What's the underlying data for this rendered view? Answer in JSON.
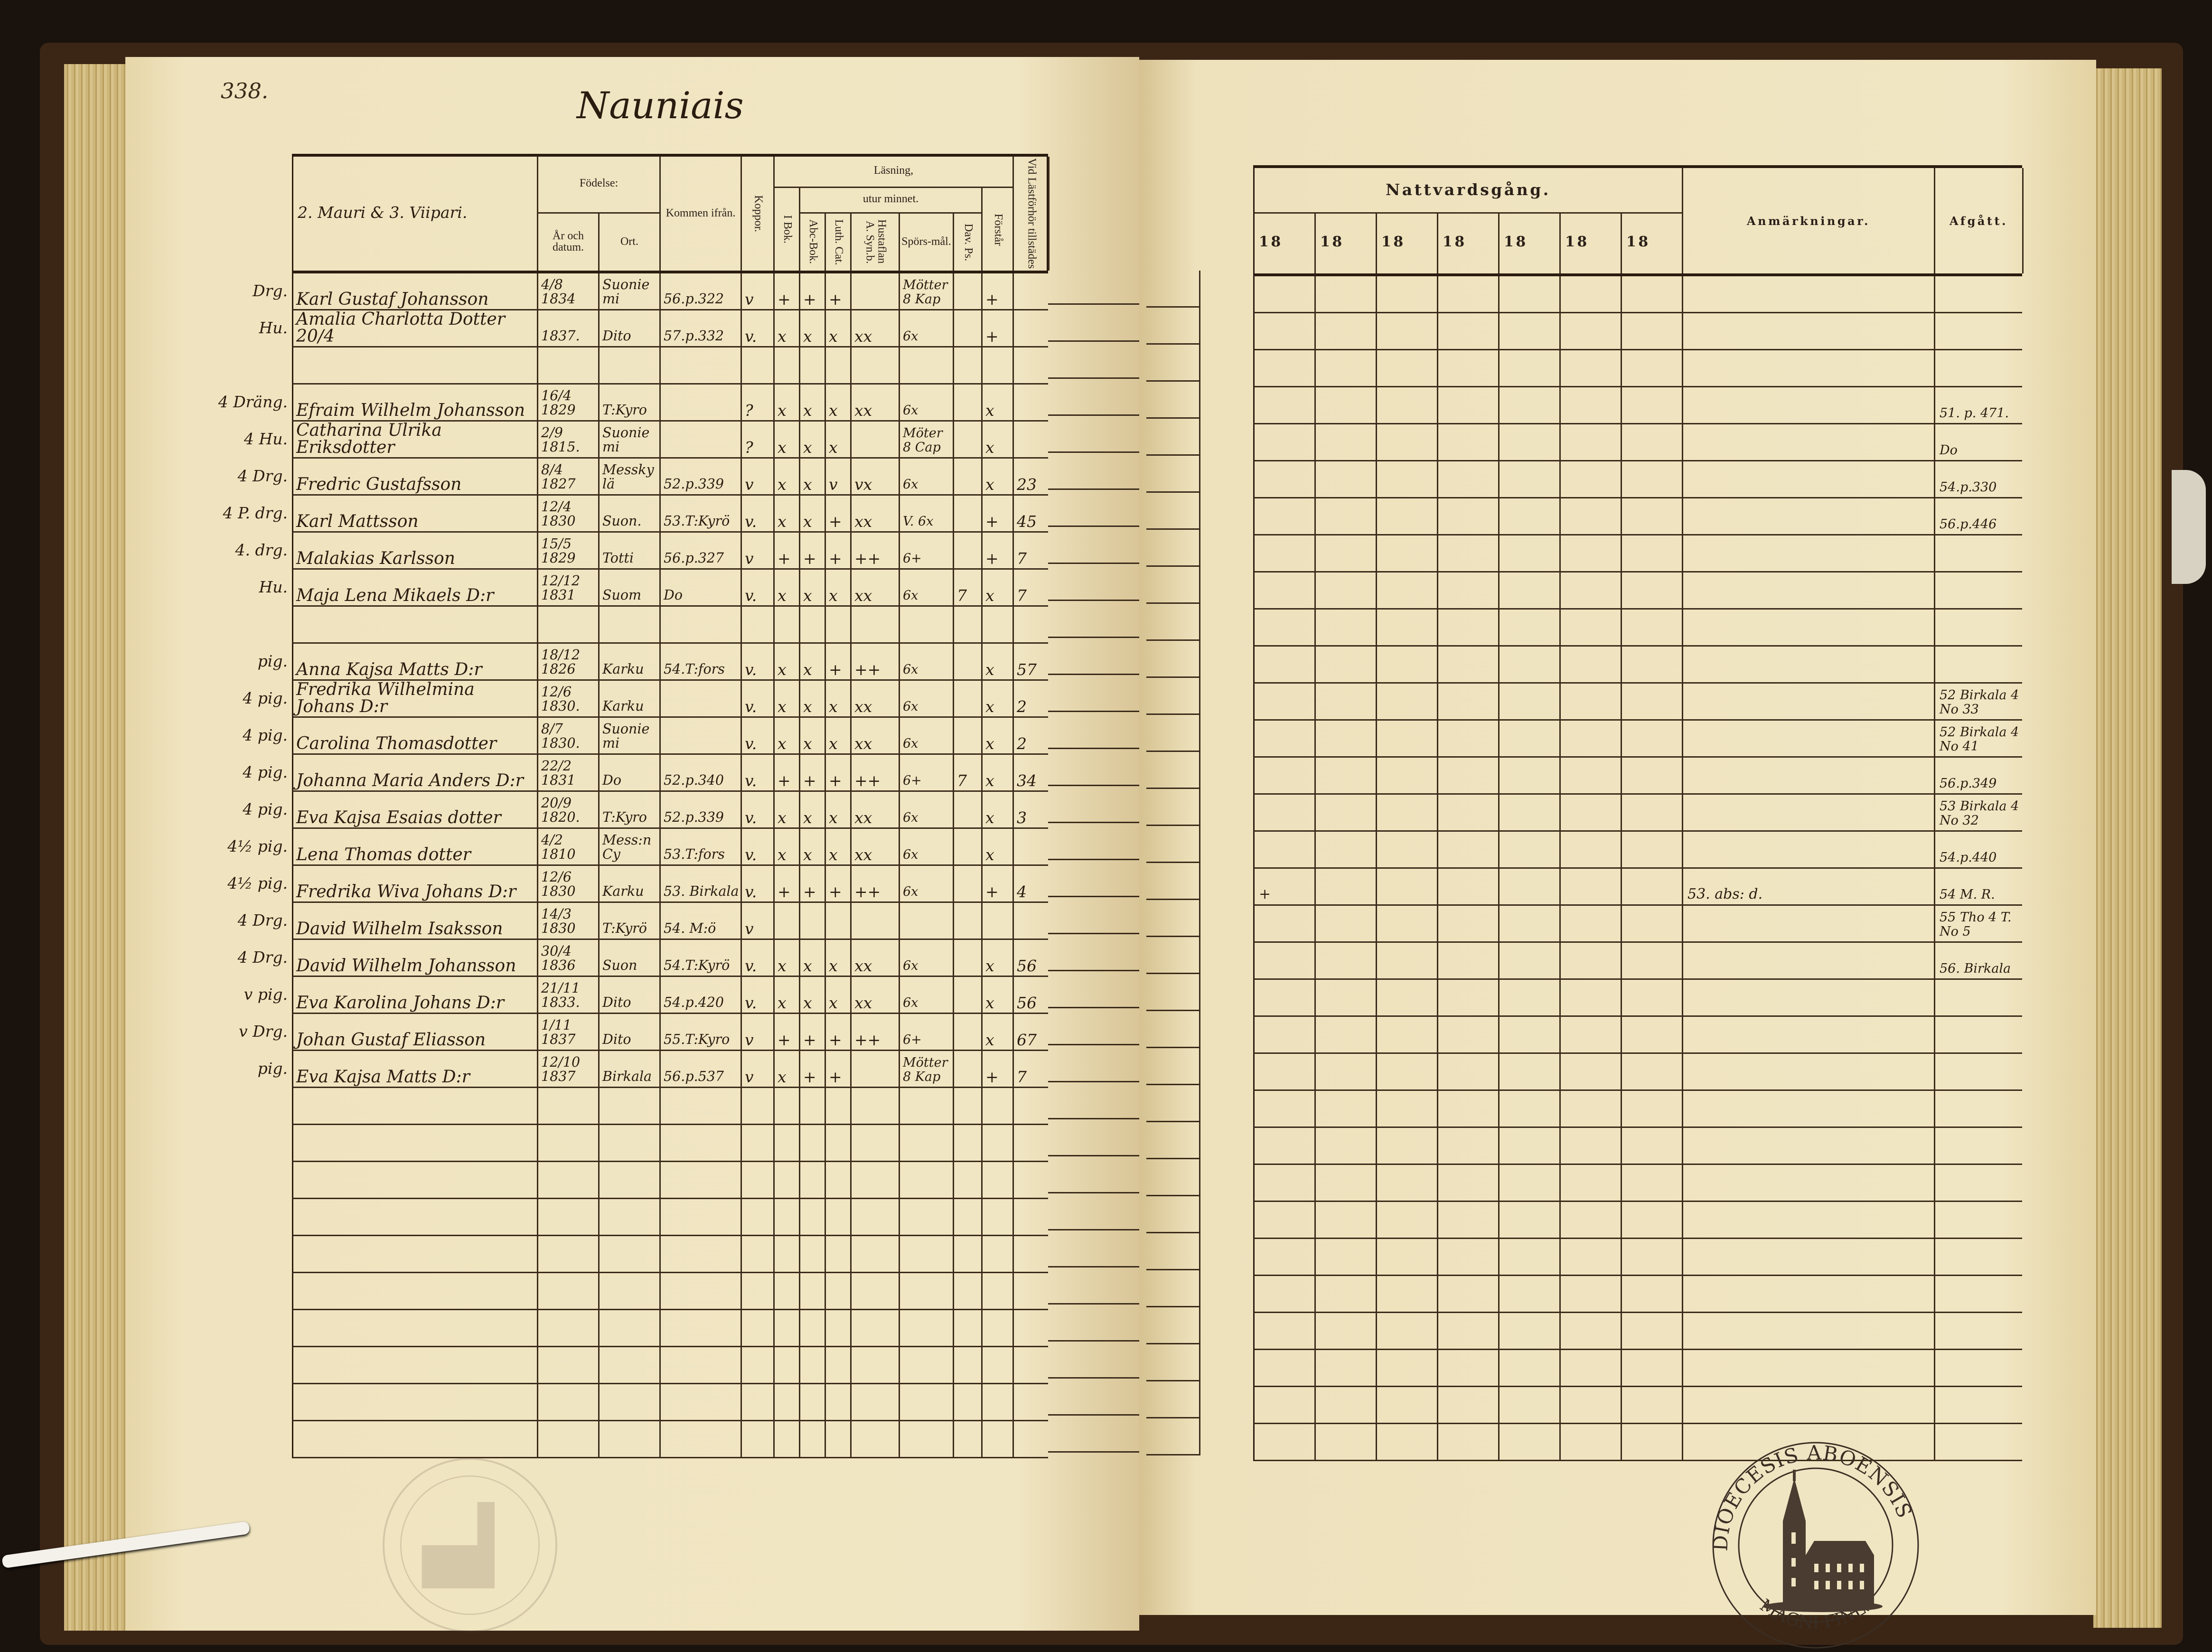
{
  "page_number": "338.",
  "village_title": "Nauniais",
  "left_header": {
    "household": "2. Mauri & 3. Viipari.",
    "fodelse": "Födelse:",
    "ar_och_datum": "År och datum.",
    "ort": "Ort.",
    "kommen_ifran": "Kommen ifrån.",
    "koppor": "Koppor.",
    "lasning": "Läsning,",
    "i_bok": "I Bok.",
    "utur_minnet": "utur minnet.",
    "abc_bok": "Abc-Bok.",
    "luth_cat": "Luth. Cat.",
    "hustaflan": "Hustaflan A. Syn.b.",
    "sporsmal": "Spörs-mål.",
    "dav_ps": "Dav. Ps.",
    "forstar": "Förstår",
    "vid_lastforhor": "Vid Lästförhör tillstädes"
  },
  "right_header": {
    "nattvardsgang": "Nattvardsgång.",
    "years": [
      "18",
      "18",
      "18",
      "18",
      "18",
      "18",
      "18"
    ],
    "anmarkningar": "Anmärkningar.",
    "afgatt": "Afgått."
  },
  "rows": [
    {
      "margin": "Drg.",
      "name": "Karl Gustaf Johansson",
      "date": "4/8 1834",
      "place": "Suoniemi",
      "from": "56.p.322",
      "koppor": "v",
      "ibok": "+",
      "abc": "+",
      "luth": "+",
      "hust": "",
      "spors": "Mötter 8 Kap",
      "dav": "",
      "forstar": "+",
      "vid": ""
    },
    {
      "margin": "Hu.",
      "name": "Amalia Charlotta Dotter 20/4",
      "date": "1837.",
      "place": "Dito",
      "from": "57.p.332",
      "koppor": "v.",
      "ibok": "x",
      "abc": "x",
      "luth": "x",
      "hust": "xx",
      "spors": "6x",
      "dav": "",
      "forstar": "+",
      "vid": ""
    },
    {},
    {
      "margin": "4 Dräng.",
      "name": "Efraim Wilhelm Johansson",
      "date": "16/4 1829",
      "place": "T:Kyro",
      "from": "",
      "koppor": "?",
      "ibok": "x",
      "abc": "x",
      "luth": "x",
      "hust": "xx",
      "spors": "6x",
      "dav": "",
      "forstar": "x",
      "vid": "",
      "afgatt": "51. p. 471."
    },
    {
      "margin": "4 Hu.",
      "name": "Catharina Ulrika Eriksdotter",
      "date": "2/9 1815.",
      "place": "Suoniemi",
      "from": "",
      "koppor": "?",
      "ibok": "x",
      "abc": "x",
      "luth": "x",
      "hust": "",
      "spors": "Möter 8 Cap",
      "dav": "",
      "forstar": "x",
      "vid": "",
      "afgatt": "Do"
    },
    {
      "margin": "4 Drg.",
      "name": "Fredric Gustafsson",
      "date": "8/4 1827",
      "place": "Messkylä",
      "from": "52.p.339",
      "koppor": "v",
      "ibok": "x",
      "abc": "x",
      "luth": "v",
      "hust": "vx",
      "spors": "6x",
      "dav": "",
      "forstar": "x",
      "vid": "23",
      "afgatt": "54.p.330"
    },
    {
      "margin": "4 P. drg.",
      "name": "Karl Mattsson",
      "date": "12/4 1830",
      "place": "Suon.",
      "from": "53.T:Kyrö",
      "koppor": "v.",
      "ibok": "x",
      "abc": "x",
      "luth": "+",
      "hust": "xx",
      "spors": "V. 6x",
      "dav": "",
      "forstar": "+",
      "vid": "45",
      "afgatt": "56.p.446"
    },
    {
      "margin": "4. drg.",
      "name": "Malakias Karlsson",
      "date": "15/5 1829",
      "place": "Totti",
      "from": "56.p.327",
      "koppor": "v",
      "ibok": "+",
      "abc": "+",
      "luth": "+",
      "hust": "++",
      "spors": "6+",
      "dav": "",
      "forstar": "+",
      "vid": "7"
    },
    {
      "margin": "Hu.",
      "name": "Maja Lena Mikaels D:r",
      "date": "12/12 1831",
      "place": "Suom",
      "from": "Do",
      "koppor": "v.",
      "ibok": "x",
      "abc": "x",
      "luth": "x",
      "hust": "xx",
      "spors": "6x",
      "dav": "7",
      "forstar": "x",
      "vid": "7"
    },
    {},
    {
      "margin": "pig.",
      "name": "Anna Kajsa Matts D:r",
      "date": "18/12 1826",
      "place": "Karku",
      "from": "54.T:fors",
      "koppor": "v.",
      "ibok": "x",
      "abc": "x",
      "luth": "+",
      "hust": "++",
      "spors": "6x",
      "dav": "",
      "forstar": "x",
      "vid": "57"
    },
    {
      "margin": "4 pig.",
      "name": "Fredrika Wilhelmina Johans D:r",
      "date": "12/6 1830.",
      "place": "Karku",
      "from": "",
      "koppor": "v.",
      "ibok": "x",
      "abc": "x",
      "luth": "x",
      "hust": "xx",
      "spors": "6x",
      "dav": "",
      "forstar": "x",
      "vid": "2",
      "afgatt": "52 Birkala 4 No 33"
    },
    {
      "margin": "4 pig.",
      "name": "Carolina Thomasdotter",
      "date": "8/7 1830.",
      "place": "Suoniemi",
      "from": "",
      "koppor": "v.",
      "ibok": "x",
      "abc": "x",
      "luth": "x",
      "hust": "xx",
      "spors": "6x",
      "dav": "",
      "forstar": "x",
      "vid": "2",
      "afgatt": "52 Birkala 4 No 41"
    },
    {
      "margin": "4 pig.",
      "name": "Johanna Maria Anders D:r",
      "date": "22/2 1831",
      "place": "Do",
      "from": "52.p.340",
      "koppor": "v.",
      "ibok": "+",
      "abc": "+",
      "luth": "+",
      "hust": "++",
      "spors": "6+",
      "dav": "7",
      "forstar": "x",
      "vid": "34",
      "afgatt": "56.p.349"
    },
    {
      "margin": "4 pig.",
      "name": "Eva Kajsa Esaias dotter",
      "date": "20/9 1820.",
      "place": "T:Kyro",
      "from": "52.p.339",
      "koppor": "v.",
      "ibok": "x",
      "abc": "x",
      "luth": "x",
      "hust": "xx",
      "spors": "6x",
      "dav": "",
      "forstar": "x",
      "vid": "3",
      "afgatt": "53 Birkala 4 No 32"
    },
    {
      "margin": "4½ pig.",
      "name": "Lena Thomas dotter",
      "date": "4/2 1810",
      "place": "Mess:n Cy",
      "from": "53.T:fors",
      "koppor": "v.",
      "ibok": "x",
      "abc": "x",
      "luth": "x",
      "hust": "xx",
      "spors": "6x",
      "dav": "",
      "forstar": "x",
      "vid": "",
      "afgatt": "54.p.440"
    },
    {
      "margin": "4½ pig.",
      "name": "Fredrika Wiva Johans D:r",
      "date": "12/6 1830",
      "place": "Karku",
      "from": "53. Birkala",
      "koppor": "v.",
      "ibok": "+",
      "abc": "+",
      "luth": "+",
      "hust": "++",
      "spors": "6x",
      "dav": "",
      "forstar": "+",
      "vid": "4",
      "natt": [
        "+",
        "",
        "",
        "",
        "",
        "",
        ""
      ],
      "anm": "53. abs: d.",
      "afgatt": "54 M. R."
    },
    {
      "margin": "4 Drg.",
      "name": "David Wilhelm Isaksson",
      "date": "14/3 1830",
      "place": "T:Kyrö",
      "from": "54. M:ö",
      "koppor": "v",
      "ibok": "",
      "abc": "",
      "luth": "",
      "hust": "",
      "spors": "",
      "dav": "",
      "forstar": "",
      "vid": "",
      "afgatt": "55 Tho 4 T. No 5"
    },
    {
      "margin": "4 Drg.",
      "name": "David Wilhelm Johansson",
      "date": "30/4 1836",
      "place": "Suon",
      "from": "54.T:Kyrö",
      "koppor": "v.",
      "ibok": "x",
      "abc": "x",
      "luth": "x",
      "hust": "xx",
      "spors": "6x",
      "dav": "",
      "forstar": "x",
      "vid": "56",
      "afgatt": "56. Birkala"
    },
    {
      "margin": "v pig.",
      "name": "Eva Karolina Johans D:r",
      "date": "21/11 1833.",
      "place": "Dito",
      "from": "54.p.420",
      "koppor": "v.",
      "ibok": "x",
      "abc": "x",
      "luth": "x",
      "hust": "xx",
      "spors": "6x",
      "dav": "",
      "forstar": "x",
      "vid": "56"
    },
    {
      "margin": "v Drg.",
      "name": "Johan Gustaf Eliasson",
      "date": "1/11 1837",
      "place": "Dito",
      "from": "55.T:Kyro",
      "koppor": "v",
      "ibok": "+",
      "abc": "+",
      "luth": "+",
      "hust": "++",
      "spors": "6+",
      "dav": "",
      "forstar": "x",
      "vid": "67"
    },
    {
      "margin": "pig.",
      "name": "Eva Kajsa Matts D:r",
      "date": "12/10 1837",
      "place": "Birkala",
      "from": "56.p.537",
      "koppor": "v",
      "ibok": "x",
      "abc": "+",
      "luth": "+",
      "hust": "",
      "spors": "Mötter 8 Kap",
      "dav": "",
      "forstar": "+",
      "vid": "7"
    },
    {},
    {},
    {},
    {},
    {},
    {},
    {},
    {},
    {},
    {}
  ],
  "stamp": {
    "text_top": "DIOECESIS ABOENSIS",
    "text_bottom": "MAGNI FINL."
  },
  "colors": {
    "paper": "#f1e6c3",
    "ink": "#2a1c10",
    "background": "#1a120c"
  }
}
